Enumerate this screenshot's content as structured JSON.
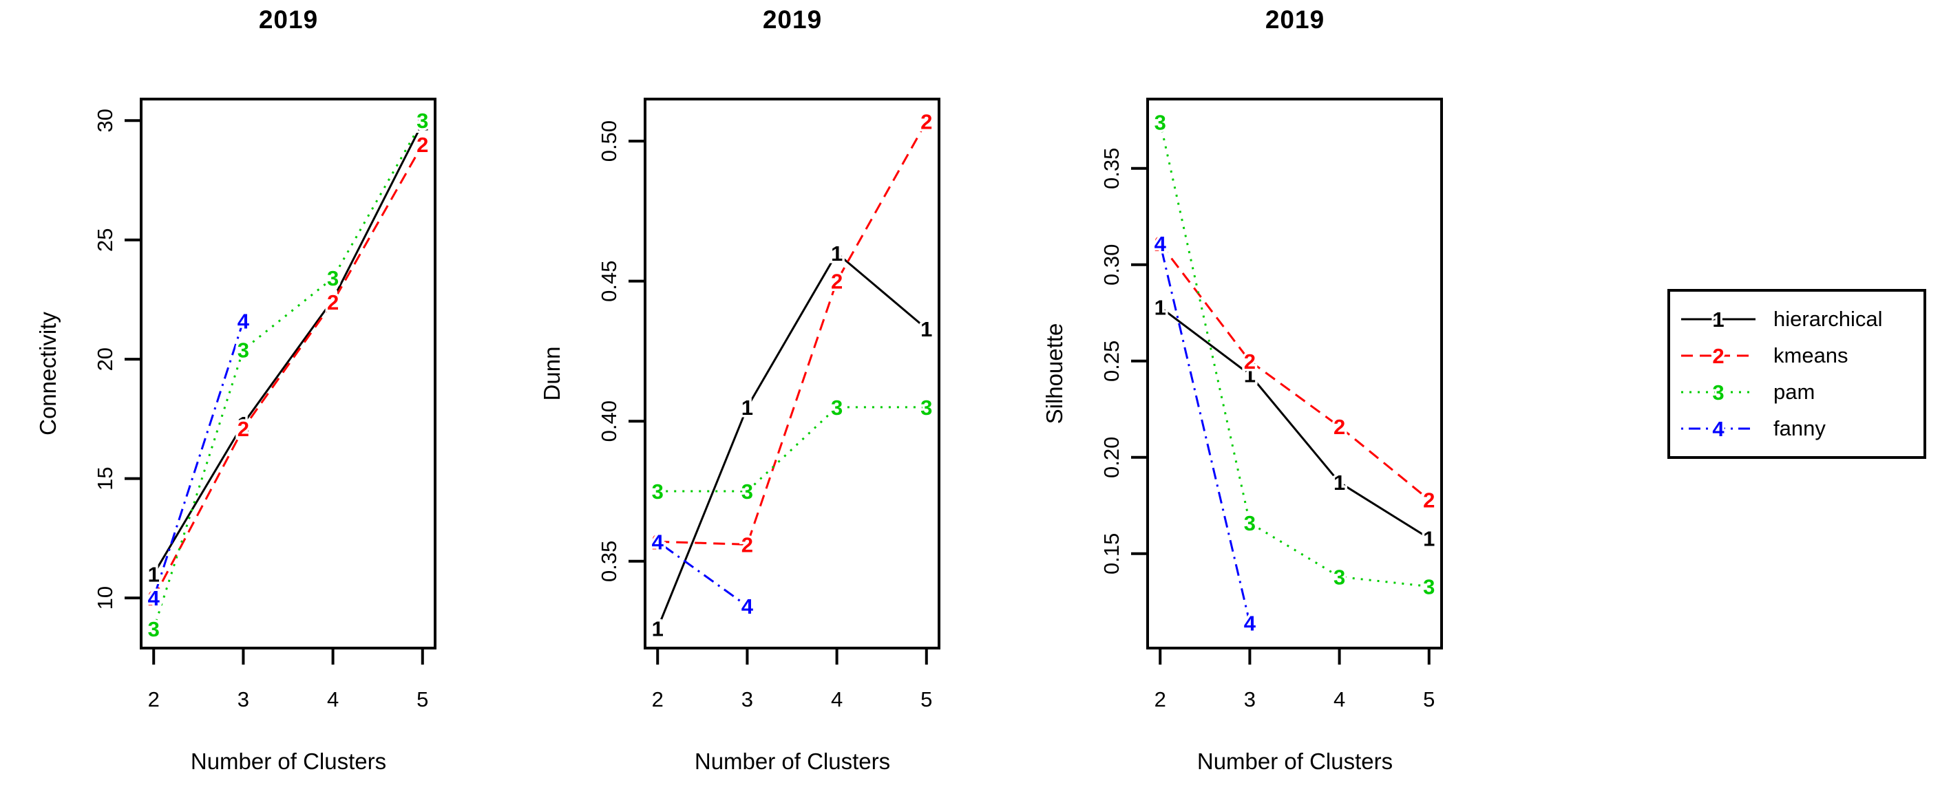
{
  "figure": {
    "background": "#ffffff",
    "axis_color": "#000000"
  },
  "chart_data": [
    {
      "type": "line",
      "title": "2019",
      "xlabel": "Number of Clusters",
      "ylabel": "Connectivity",
      "xlim": [
        1.86,
        5.14
      ],
      "ylim": [
        7.9,
        30.9
      ],
      "x_ticks": [
        2,
        3,
        4,
        5
      ],
      "x_tick_labels": [
        "2",
        "3",
        "4",
        "5"
      ],
      "y_ticks": [
        10,
        15,
        20,
        25,
        30
      ],
      "y_tick_labels": [
        "10",
        "15",
        "20",
        "25",
        "30"
      ],
      "grid": false,
      "series": [
        {
          "name": "hierarchical",
          "symbol": "1",
          "color": "#000000",
          "linetype": "solid",
          "x": [
            2,
            3,
            4,
            5
          ],
          "values": [
            11.0,
            17.3,
            22.5,
            29.9
          ]
        },
        {
          "name": "kmeans",
          "symbol": "2",
          "color": "#ff0000",
          "linetype": "dashed",
          "x": [
            2,
            3,
            4,
            5
          ],
          "values": [
            10.0,
            17.1,
            22.4,
            29.0
          ]
        },
        {
          "name": "pam",
          "symbol": "3",
          "color": "#00cc00",
          "linetype": "dotted",
          "x": [
            2,
            3,
            4,
            5
          ],
          "values": [
            8.7,
            20.4,
            23.4,
            30.0
          ]
        },
        {
          "name": "fanny",
          "symbol": "4",
          "color": "#0000ff",
          "linetype": "dashdot",
          "x": [
            2,
            3
          ],
          "values": [
            10.0,
            21.6
          ]
        }
      ]
    },
    {
      "type": "line",
      "title": "2019",
      "xlabel": "Number of Clusters",
      "ylabel": "Dunn",
      "xlim": [
        1.86,
        5.14
      ],
      "ylim": [
        0.319,
        0.515
      ],
      "x_ticks": [
        2,
        3,
        4,
        5
      ],
      "x_tick_labels": [
        "2",
        "3",
        "4",
        "5"
      ],
      "y_ticks": [
        0.35,
        0.4,
        0.45,
        0.5
      ],
      "y_tick_labels": [
        "0.35",
        "0.40",
        "0.45",
        "0.50"
      ],
      "grid": false,
      "series": [
        {
          "name": "hierarchical",
          "symbol": "1",
          "color": "#000000",
          "linetype": "solid",
          "x": [
            2,
            3,
            4,
            5
          ],
          "values": [
            0.326,
            0.405,
            0.46,
            0.433
          ]
        },
        {
          "name": "kmeans",
          "symbol": "2",
          "color": "#ff0000",
          "linetype": "dashed",
          "x": [
            2,
            3,
            4,
            5
          ],
          "values": [
            0.357,
            0.356,
            0.45,
            0.507
          ]
        },
        {
          "name": "pam",
          "symbol": "3",
          "color": "#00cc00",
          "linetype": "dotted",
          "x": [
            2,
            3,
            4,
            5
          ],
          "values": [
            0.375,
            0.375,
            0.405,
            0.405
          ]
        },
        {
          "name": "fanny",
          "symbol": "4",
          "color": "#0000ff",
          "linetype": "dashdot",
          "x": [
            2,
            3
          ],
          "values": [
            0.357,
            0.334
          ]
        }
      ]
    },
    {
      "type": "line",
      "title": "2019",
      "xlabel": "Number of Clusters",
      "ylabel": "Silhouette",
      "xlim": [
        1.86,
        5.14
      ],
      "ylim": [
        0.101,
        0.386
      ],
      "x_ticks": [
        2,
        3,
        4,
        5
      ],
      "x_tick_labels": [
        "2",
        "3",
        "4",
        "5"
      ],
      "y_ticks": [
        0.15,
        0.2,
        0.25,
        0.3,
        0.35
      ],
      "y_tick_labels": [
        "0.15",
        "0.20",
        "0.25",
        "0.30",
        "0.35"
      ],
      "grid": false,
      "series": [
        {
          "name": "hierarchical",
          "symbol": "1",
          "color": "#000000",
          "linetype": "solid",
          "x": [
            2,
            3,
            4,
            5
          ],
          "values": [
            0.278,
            0.243,
            0.187,
            0.158
          ]
        },
        {
          "name": "kmeans",
          "symbol": "2",
          "color": "#ff0000",
          "linetype": "dashed",
          "x": [
            2,
            3,
            4,
            5
          ],
          "values": [
            0.311,
            0.25,
            0.216,
            0.178
          ]
        },
        {
          "name": "pam",
          "symbol": "3",
          "color": "#00cc00",
          "linetype": "dotted",
          "x": [
            2,
            3,
            4,
            5
          ],
          "values": [
            0.374,
            0.166,
            0.138,
            0.133
          ]
        },
        {
          "name": "fanny",
          "symbol": "4",
          "color": "#0000ff",
          "linetype": "dashdot",
          "x": [
            2,
            3
          ],
          "values": [
            0.311,
            0.114
          ]
        }
      ]
    }
  ],
  "legend": {
    "position": "right",
    "items": [
      {
        "symbol": "1",
        "label": "hierarchical",
        "color": "#000000",
        "linetype": "solid"
      },
      {
        "symbol": "2",
        "label": "kmeans",
        "color": "#ff0000",
        "linetype": "dashed"
      },
      {
        "symbol": "3",
        "label": "pam",
        "color": "#00cc00",
        "linetype": "dotted"
      },
      {
        "symbol": "4",
        "label": "fanny",
        "color": "#0000ff",
        "linetype": "dashdot"
      }
    ]
  }
}
